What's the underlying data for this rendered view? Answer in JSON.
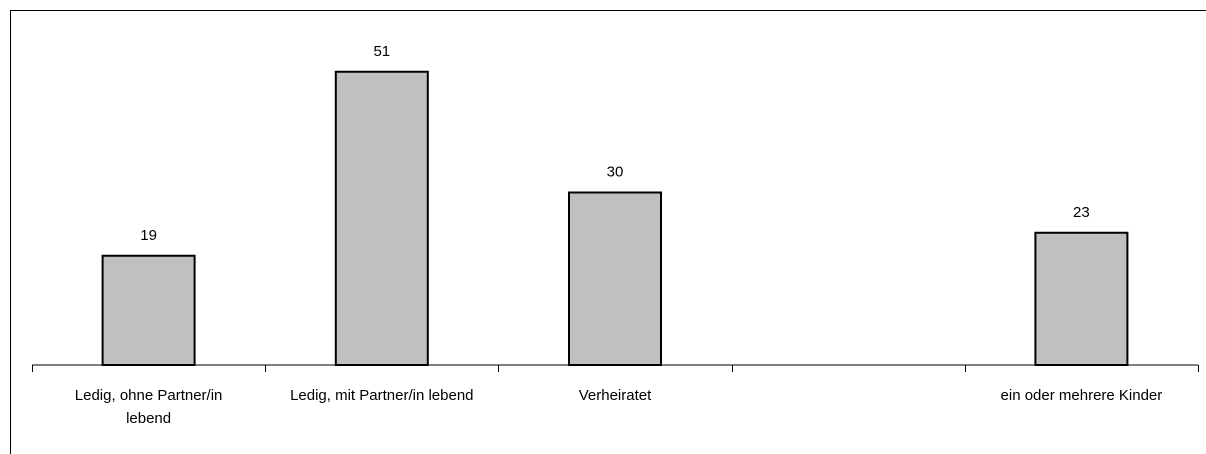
{
  "chart_data": {
    "type": "bar",
    "categories": [
      "Ledig, ohne Partner/in lebend",
      "Ledig, mit Partner/in lebend",
      "Verheiratet",
      "",
      "ein oder mehrere Kinder"
    ],
    "category_lines": [
      [
        "Ledig, ohne Partner/in",
        "lebend"
      ],
      [
        "Ledig, mit Partner/in lebend"
      ],
      [
        "Verheiratet"
      ],
      [],
      [
        "ein oder mehrere Kinder"
      ]
    ],
    "values": [
      19,
      51,
      30,
      null,
      23
    ],
    "value_labels": [
      "19",
      "51",
      "30",
      "",
      "23"
    ],
    "ylim": [
      0,
      60
    ],
    "grid": false,
    "colors": {
      "bar": "#c0c0c0",
      "stroke": "#000000"
    }
  }
}
